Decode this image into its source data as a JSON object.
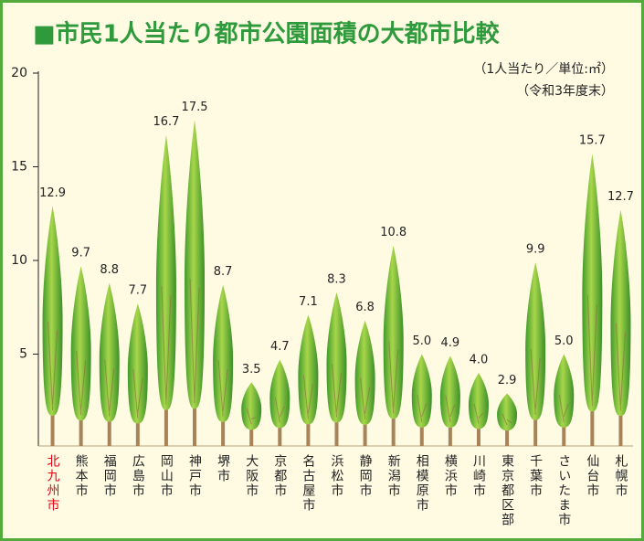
{
  "chart_data": {
    "type": "bar",
    "title": "■市民1人当たり都市公園面積の大都市比較",
    "subtitle": "（1人当たり／単位:㎡）",
    "note": "（令和3年度末）",
    "categories": [
      "北九州市",
      "熊本市",
      "福岡市",
      "広島市",
      "岡山市",
      "神戸市",
      "堺市",
      "大阪市",
      "京都市",
      "名古屋市",
      "浜松市",
      "静岡市",
      "新潟市",
      "相模原市",
      "横浜市",
      "川崎市",
      "東京都区部",
      "千葉市",
      "さいたま市",
      "仙台市",
      "札幌市"
    ],
    "values": [
      12.9,
      9.7,
      8.8,
      7.7,
      16.7,
      17.5,
      8.7,
      3.5,
      4.7,
      7.1,
      8.3,
      6.8,
      10.8,
      5.0,
      4.9,
      4.0,
      2.9,
      9.9,
      5.0,
      15.7,
      12.7
    ],
    "value_labels": [
      "12.9",
      "9.7",
      "8.8",
      "7.7",
      "16.7",
      "17.5",
      "8.7",
      "3.5",
      "4.7",
      "7.1",
      "8.3",
      "6.8",
      "10.8",
      "5.0",
      "4.9",
      "4.0",
      "2.9",
      "9.9",
      "5.0",
      "15.7",
      "12.7"
    ],
    "color": "#5cae32",
    "highlight_category_index": 0,
    "highlight_color": "#e60012",
    "ylim": [
      0,
      20
    ],
    "yticks": [
      5,
      10,
      15,
      20
    ],
    "grid": false
  }
}
